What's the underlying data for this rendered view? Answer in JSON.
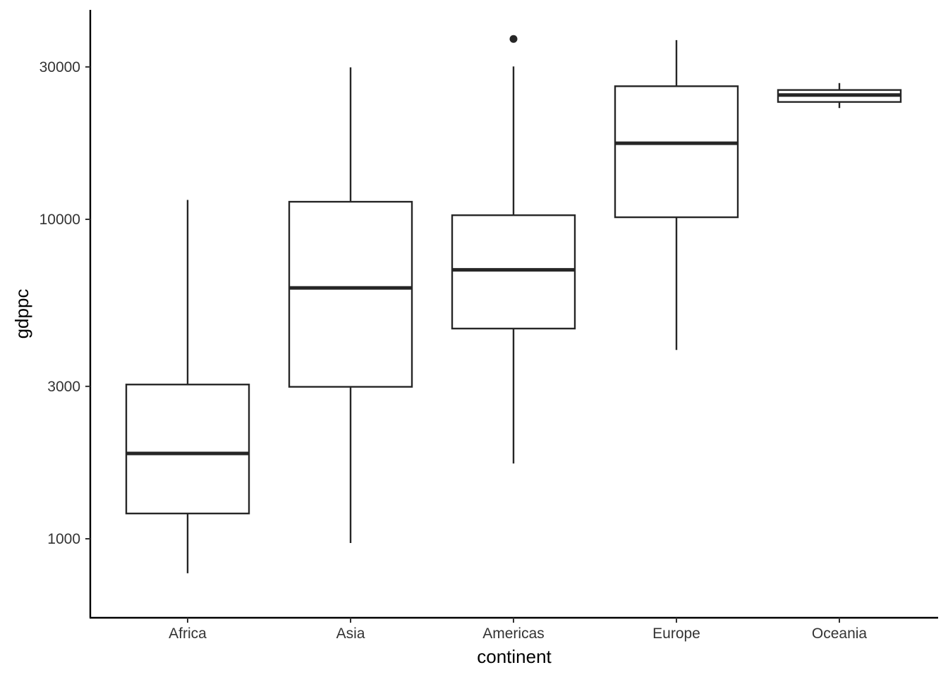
{
  "chart_data": {
    "type": "boxplot",
    "xlabel": "continent",
    "ylabel": "gdppc",
    "y_scale": "log10",
    "ylim": [
      720,
      42000
    ],
    "yticks": [
      1000,
      3000,
      10000,
      30000
    ],
    "ytick_labels": [
      "1000",
      "3000",
      "10000",
      "30000"
    ],
    "grid": false,
    "colors": {
      "stroke": "#262626",
      "axis": "#000000",
      "fill": "#ffffff"
    },
    "categories": [
      "Africa",
      "Asia",
      "Americas",
      "Europe",
      "Oceania"
    ],
    "boxes": [
      {
        "category": "Africa",
        "whisker_low": 780,
        "q1": 1200,
        "median": 1850,
        "q3": 3040,
        "whisker_high": 11500,
        "outliers": []
      },
      {
        "category": "Asia",
        "whisker_low": 970,
        "q1": 2990,
        "median": 6100,
        "q3": 11350,
        "whisker_high": 29900,
        "outliers": []
      },
      {
        "category": "Americas",
        "whisker_low": 1720,
        "q1": 4550,
        "median": 6950,
        "q3": 10300,
        "whisker_high": 30100,
        "outliers": [
          36700
        ]
      },
      {
        "category": "Europe",
        "whisker_low": 3900,
        "q1": 10150,
        "median": 17300,
        "q3": 26100,
        "whisker_high": 36400,
        "outliers": []
      },
      {
        "category": "Oceania",
        "whisker_low": 22300,
        "q1": 23300,
        "median": 24500,
        "q3": 25400,
        "whisker_high": 26700,
        "outliers": []
      }
    ]
  }
}
